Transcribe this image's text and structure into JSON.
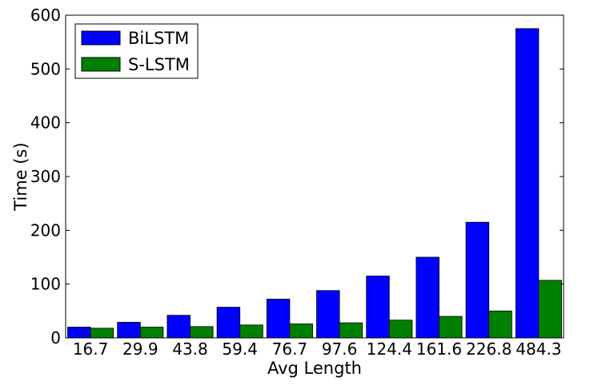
{
  "chart_data": {
    "type": "bar",
    "xlabel": "Avg Length",
    "ylabel": "Time (s)",
    "ylim": [
      0,
      600
    ],
    "yticks": [
      0,
      100,
      200,
      300,
      400,
      500,
      600
    ],
    "categories": [
      "16.7",
      "29.9",
      "43.8",
      "59.4",
      "76.7",
      "97.6",
      "124.4",
      "161.6",
      "226.8",
      "484.3"
    ],
    "series": [
      {
        "name": "BiLSTM",
        "color": "#0000ff",
        "values": [
          20,
          29,
          42,
          57,
          72,
          88,
          115,
          150,
          215,
          575
        ]
      },
      {
        "name": "S-LSTM",
        "color": "#008000",
        "values": [
          18,
          20,
          21,
          24,
          26,
          28,
          33,
          40,
          50,
          107
        ]
      }
    ],
    "legend_position": "top-left",
    "grid": false
  }
}
